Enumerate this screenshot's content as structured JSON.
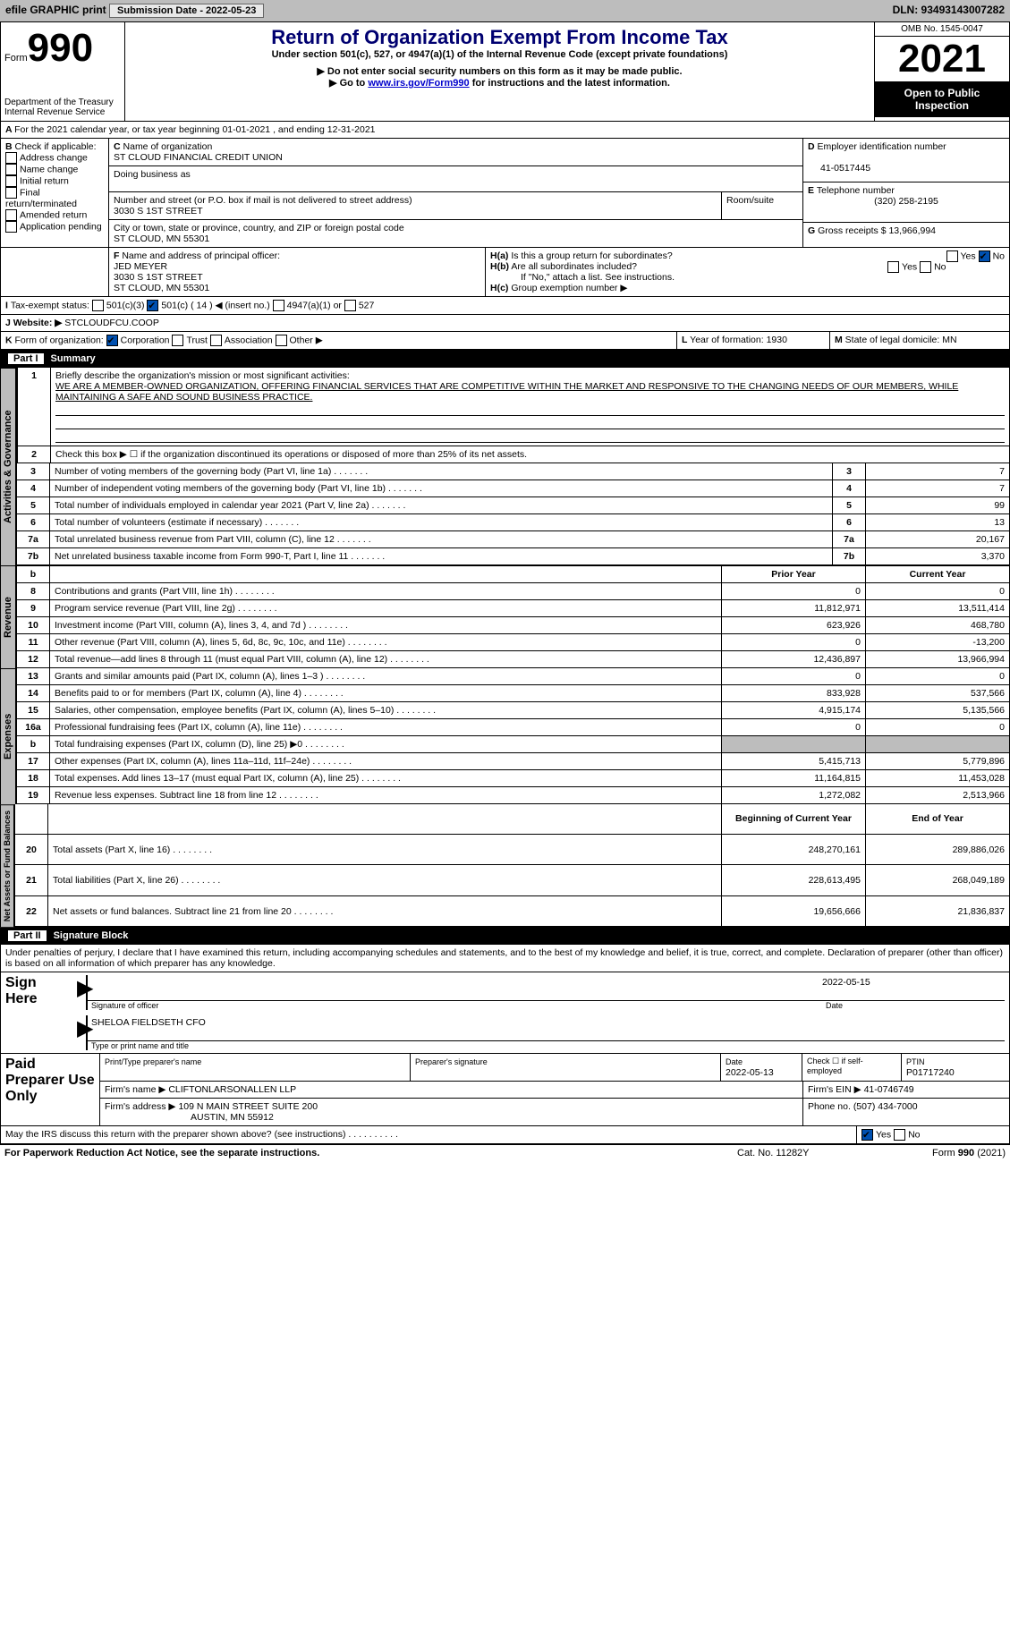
{
  "topbar": {
    "efile": "efile GRAPHIC print",
    "subdate_lbl": "Submission Date - 2022-05-23",
    "dln": "DLN: 93493143007282"
  },
  "hdr": {
    "form": "Form",
    "n990": "990",
    "title": "Return of Organization Exempt From Income Tax",
    "sub1": "Under section 501(c), 527, or 4947(a)(1) of the Internal Revenue Code (except private foundations)",
    "sub2": "▶ Do not enter social security numbers on this form as it may be made public.",
    "sub3": "▶ Go to www.irs.gov/Form990 for instructions and the latest information.",
    "dept": "Department of the Treasury",
    "irs": "Internal Revenue Service",
    "omb": "OMB No. 1545-0047",
    "year": "2021",
    "inspect": "Open to Public Inspection"
  },
  "A": {
    "line": "For the 2021 calendar year, or tax year beginning 01-01-2021   , and ending 12-31-2021"
  },
  "B": {
    "title": "Check if applicable:",
    "opts": [
      "Address change",
      "Name change",
      "Initial return",
      "Final return/terminated",
      "Amended return",
      "Application pending"
    ]
  },
  "C": {
    "name_lbl": "Name of organization",
    "name": "ST CLOUD FINANCIAL CREDIT UNION",
    "dba_lbl": "Doing business as",
    "dba": "",
    "street_lbl": "Number and street (or P.O. box if mail is not delivered to street address)",
    "street": "3030 S 1ST STREET",
    "room_lbl": "Room/suite",
    "city_lbl": "City or town, state or province, country, and ZIP or foreign postal code",
    "city": "ST CLOUD, MN  55301"
  },
  "D": {
    "lbl": "Employer identification number",
    "val": "41-0517445"
  },
  "E": {
    "lbl": "Telephone number",
    "val": "(320) 258-2195"
  },
  "G": {
    "lbl": "Gross receipts $",
    "val": "13,966,994"
  },
  "F": {
    "lbl": "Name and address of principal officer:",
    "name": "JED MEYER",
    "addr1": "3030 S 1ST STREET",
    "addr2": "ST CLOUD, MN  55301"
  },
  "H": {
    "a": "Is this a group return for subordinates?",
    "a_no": "No",
    "b": "Are all subordinates included?",
    "bnote": "If \"No,\" attach a list. See instructions.",
    "c": "Group exemption number ▶"
  },
  "I": {
    "lbl": "Tax-exempt status:",
    "o1": "501(c)(3)",
    "o2": "501(c) ( 14 ) ◀ (insert no.)",
    "o3": "4947(a)(1) or",
    "o4": "527"
  },
  "J": {
    "lbl": "Website: ▶",
    "val": "STCLOUDFCU.COOP"
  },
  "K": {
    "lbl": "Form of organization:",
    "o1": "Corporation",
    "o2": "Trust",
    "o3": "Association",
    "o4": "Other ▶"
  },
  "L": {
    "lbl": "Year of formation: 1930"
  },
  "M": {
    "lbl": "State of legal domicile: MN"
  },
  "part1": {
    "num": "Part I",
    "title": "Summary"
  },
  "sec1": {
    "l1a": "Briefly describe the organization's mission or most significant activities:",
    "l1b": "WE ARE A MEMBER-OWNED ORGANIZATION, OFFERING FINANCIAL SERVICES THAT ARE COMPETITIVE WITHIN THE MARKET AND RESPONSIVE TO THE CHANGING NEEDS OF OUR MEMBERS, WHILE MAINTAINING A SAFE AND SOUND BUSINESS PRACTICE.",
    "l2": "Check this box ▶ ☐ if the organization discontinued its operations or disposed of more than 25% of its net assets.",
    "rows": [
      {
        "n": "3",
        "t": "Number of voting members of the governing body (Part VI, line 1a)",
        "v": "7"
      },
      {
        "n": "4",
        "t": "Number of independent voting members of the governing body (Part VI, line 1b)",
        "v": "7"
      },
      {
        "n": "5",
        "t": "Total number of individuals employed in calendar year 2021 (Part V, line 2a)",
        "v": "99"
      },
      {
        "n": "6",
        "t": "Total number of volunteers (estimate if necessary)",
        "v": "13"
      },
      {
        "n": "7a",
        "t": "Total unrelated business revenue from Part VIII, column (C), line 12",
        "v": "20,167"
      },
      {
        "n": "7b",
        "t": "Net unrelated business taxable income from Form 990-T, Part I, line 11",
        "v": "3,370"
      }
    ]
  },
  "tab_ag": "Activities & Governance",
  "tab_rev": "Revenue",
  "tab_exp": "Expenses",
  "tab_net": "Net Assets or Fund Balances",
  "colhdr": {
    "py": "Prior Year",
    "cy": "Current Year",
    "boy": "Beginning of Current Year",
    "eoy": "End of Year"
  },
  "rev": [
    {
      "n": "8",
      "t": "Contributions and grants (Part VIII, line 1h)",
      "p": "0",
      "c": "0"
    },
    {
      "n": "9",
      "t": "Program service revenue (Part VIII, line 2g)",
      "p": "11,812,971",
      "c": "13,511,414"
    },
    {
      "n": "10",
      "t": "Investment income (Part VIII, column (A), lines 3, 4, and 7d )",
      "p": "623,926",
      "c": "468,780"
    },
    {
      "n": "11",
      "t": "Other revenue (Part VIII, column (A), lines 5, 6d, 8c, 9c, 10c, and 11e)",
      "p": "0",
      "c": "-13,200"
    },
    {
      "n": "12",
      "t": "Total revenue—add lines 8 through 11 (must equal Part VIII, column (A), line 12)",
      "p": "12,436,897",
      "c": "13,966,994"
    }
  ],
  "exp": [
    {
      "n": "13",
      "t": "Grants and similar amounts paid (Part IX, column (A), lines 1–3 )",
      "p": "0",
      "c": "0"
    },
    {
      "n": "14",
      "t": "Benefits paid to or for members (Part IX, column (A), line 4)",
      "p": "833,928",
      "c": "537,566"
    },
    {
      "n": "15",
      "t": "Salaries, other compensation, employee benefits (Part IX, column (A), lines 5–10)",
      "p": "4,915,174",
      "c": "5,135,566"
    },
    {
      "n": "16a",
      "t": "Professional fundraising fees (Part IX, column (A), line 11e)",
      "p": "0",
      "c": "0"
    },
    {
      "n": "b",
      "t": "Total fundraising expenses (Part IX, column (D), line 25) ▶0",
      "p": "",
      "c": "",
      "shade": true
    },
    {
      "n": "17",
      "t": "Other expenses (Part IX, column (A), lines 11a–11d, 11f–24e)",
      "p": "5,415,713",
      "c": "5,779,896"
    },
    {
      "n": "18",
      "t": "Total expenses. Add lines 13–17 (must equal Part IX, column (A), line 25)",
      "p": "11,164,815",
      "c": "11,453,028"
    },
    {
      "n": "19",
      "t": "Revenue less expenses. Subtract line 18 from line 12",
      "p": "1,272,082",
      "c": "2,513,966"
    }
  ],
  "net": [
    {
      "n": "20",
      "t": "Total assets (Part X, line 16)",
      "p": "248,270,161",
      "c": "289,886,026"
    },
    {
      "n": "21",
      "t": "Total liabilities (Part X, line 26)",
      "p": "228,613,495",
      "c": "268,049,189"
    },
    {
      "n": "22",
      "t": "Net assets or fund balances. Subtract line 21 from line 20",
      "p": "19,656,666",
      "c": "21,836,837"
    }
  ],
  "part2": {
    "num": "Part II",
    "title": "Signature Block"
  },
  "perjury": "Under penalties of perjury, I declare that I have examined this return, including accompanying schedules and statements, and to the best of my knowledge and belief, it is true, correct, and complete. Declaration of preparer (other than officer) is based on all information of which preparer has any knowledge.",
  "sign": {
    "here": "Sign Here",
    "sig_lbl": "Signature of officer",
    "date_lbl": "Date",
    "date": "2022-05-15",
    "name": "SHELOA FIELDSETH  CFO",
    "name_lbl": "Type or print name and title"
  },
  "prep": {
    "here": "Paid Preparer Use Only",
    "name_lbl": "Print/Type preparer's name",
    "sig_lbl": "Preparer's signature",
    "date_lbl": "Date",
    "date": "2022-05-13",
    "check_lbl": "Check ☐ if self-employed",
    "ptin_lbl": "PTIN",
    "ptin": "P01717240",
    "firm_lbl": "Firm's name   ▶",
    "firm": "CLIFTONLARSONALLEN LLP",
    "ein_lbl": "Firm's EIN ▶",
    "ein": "41-0746749",
    "addr_lbl": "Firm's address ▶",
    "addr1": "109 N MAIN STREET SUITE 200",
    "addr2": "AUSTIN, MN  55912",
    "phone_lbl": "Phone no.",
    "phone": "(507) 434-7000"
  },
  "discuss": {
    "q": "May the IRS discuss this return with the preparer shown above? (see instructions)",
    "yes": "Yes",
    "no": "No"
  },
  "foot": {
    "pra": "For Paperwork Reduction Act Notice, see the separate instructions.",
    "cat": "Cat. No. 11282Y",
    "form": "Form 990 (2021)"
  }
}
